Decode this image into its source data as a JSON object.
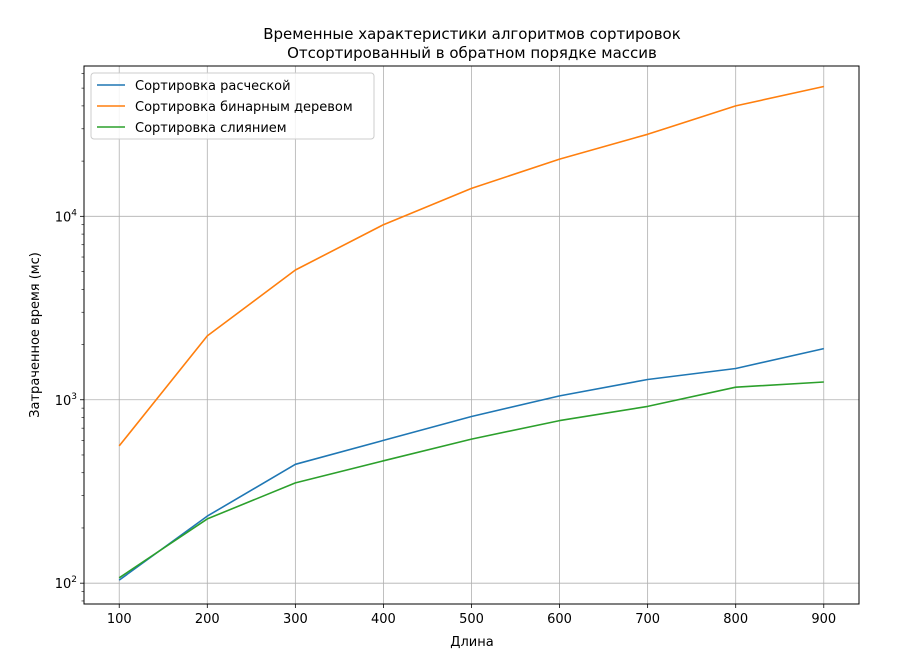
{
  "chart_data": {
    "type": "line",
    "title": [
      "Временные характеристики алгоритмов сортировок",
      "Отсортированный в обратном порядке массив"
    ],
    "xlabel": "Длина",
    "ylabel": "Затраченное время (мс)",
    "x": [
      100,
      200,
      300,
      400,
      500,
      600,
      700,
      800,
      900
    ],
    "x_ticks": [
      "100",
      "200",
      "300",
      "400",
      "500",
      "600",
      "700",
      "800",
      "900"
    ],
    "xlim": [
      60,
      940
    ],
    "y_scale": "log",
    "ylim": [
      77,
      66000
    ],
    "y_ticks": [
      {
        "value": 100,
        "base": "10",
        "exp": "2"
      },
      {
        "value": 1000,
        "base": "10",
        "exp": "3"
      },
      {
        "value": 10000,
        "base": "10",
        "exp": "4"
      }
    ],
    "grid": true,
    "legend_position": "top-left",
    "series": [
      {
        "name": "Сортировка расческой",
        "color": "#1f77b4",
        "values": [
          104,
          232,
          445,
          600,
          810,
          1050,
          1290,
          1480,
          1900
        ]
      },
      {
        "name": "Сортировка бинарным деревом",
        "color": "#ff7f0e",
        "values": [
          560,
          2230,
          5100,
          9000,
          14200,
          20500,
          28000,
          40000,
          51000
        ]
      },
      {
        "name": "Сортировка слиянием",
        "color": "#2ca02c",
        "values": [
          107,
          224,
          352,
          465,
          610,
          770,
          920,
          1170,
          1250
        ]
      }
    ]
  }
}
